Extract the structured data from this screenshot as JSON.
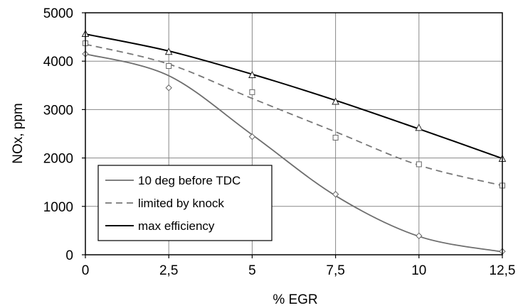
{
  "chart_data": {
    "type": "line",
    "xlabel": "% EGR",
    "ylabel": "NOx, ppm",
    "x": [
      0,
      2.5,
      5,
      7.5,
      10,
      12.5
    ],
    "x_tick_labels": [
      "0",
      "2,5",
      "5",
      "7,5",
      "10",
      "12,5"
    ],
    "y_ticks": [
      0,
      1000,
      2000,
      3000,
      4000,
      5000
    ],
    "xlim": [
      0,
      12.5
    ],
    "ylim": [
      0,
      5000
    ],
    "grid": true,
    "legend_position": "bottom-left",
    "series": [
      {
        "name": "10 deg before TDC",
        "values": [
          4150,
          3450,
          2440,
          1250,
          390,
          70
        ],
        "curve": [
          4150,
          3700,
          2480,
          1220,
          380,
          60
        ],
        "color": "#6e6e6e",
        "dash": "solid",
        "marker": "diamond"
      },
      {
        "name": "limited by knock",
        "values": [
          4370,
          3900,
          3360,
          2420,
          1870,
          1430
        ],
        "curve": [
          4350,
          3940,
          3230,
          2540,
          1850,
          1430
        ],
        "color": "#777777",
        "dash": "dashed",
        "marker": "square"
      },
      {
        "name": "max efficiency",
        "values": [
          4560,
          4190,
          3710,
          3160,
          2620,
          1980
        ],
        "curve": [
          4560,
          4210,
          3730,
          3190,
          2600,
          1990
        ],
        "color": "#000000",
        "dash": "solid",
        "marker": "triangle"
      }
    ]
  }
}
